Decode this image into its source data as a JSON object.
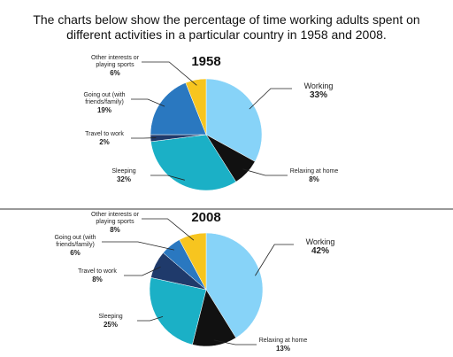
{
  "title": "The charts  below show the percentage of time working adults spent on different activities in a particular country in 1958 and 2008.",
  "chart_data": [
    {
      "type": "pie",
      "title": "1958",
      "categories": [
        "Working",
        "Relaxing at home",
        "Sleeping",
        "Travel to work",
        "Going out (with friends/family)",
        "Other interests or playing sports"
      ],
      "values": [
        33,
        8,
        32,
        2,
        19,
        6
      ],
      "value_labels": [
        "33%",
        "8%",
        "32%",
        "2%",
        "19%",
        "6%"
      ],
      "colors": [
        "#87d3f8",
        "#111111",
        "#1bb0c6",
        "#1f3a6b",
        "#2a78c0",
        "#f7c51f"
      ]
    },
    {
      "type": "pie",
      "title": "2008",
      "categories": [
        "Working",
        "Relaxing at home",
        "Sleeping",
        "Travel to work",
        "Going out (with friends/family)",
        "Other interests or playing sports"
      ],
      "values": [
        42,
        13,
        25,
        8,
        6,
        8
      ],
      "value_labels": [
        "42%",
        "13%",
        "25%",
        "8%",
        "6%",
        "8%"
      ],
      "colors": [
        "#87d3f8",
        "#111111",
        "#1bb0c6",
        "#1f3a6b",
        "#2a78c0",
        "#f7c51f"
      ]
    }
  ]
}
